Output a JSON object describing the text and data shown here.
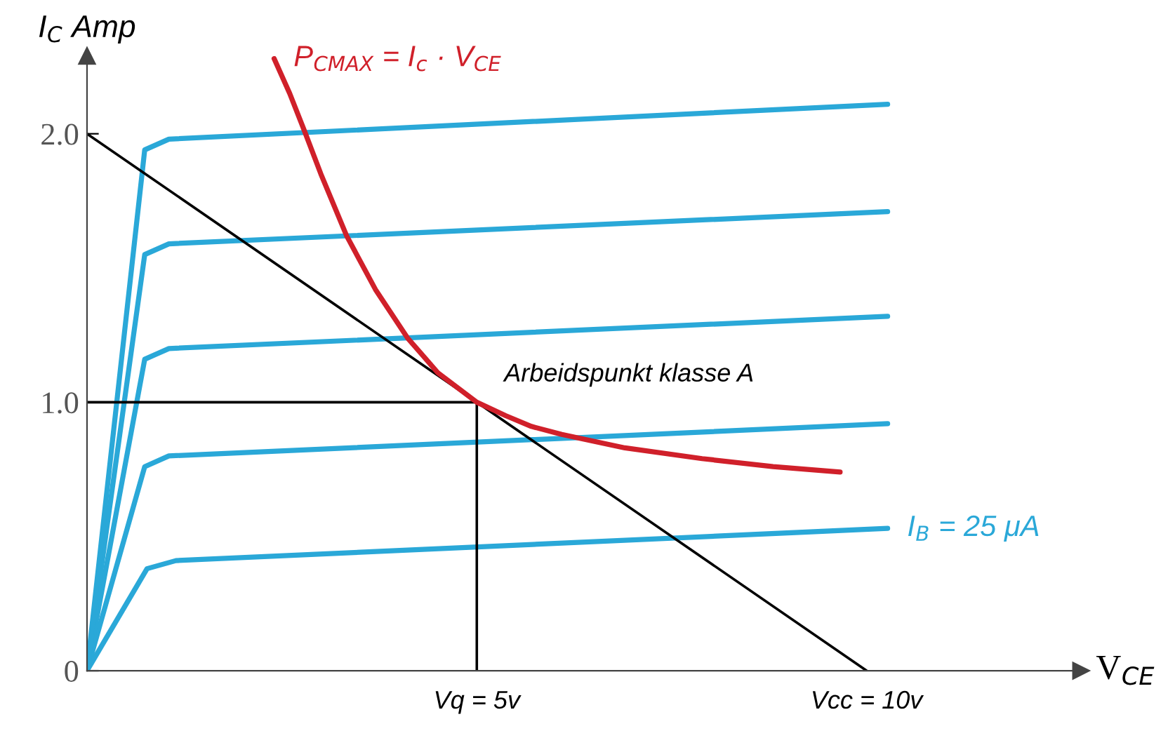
{
  "chart_data": {
    "type": "line",
    "xlabel": "V$_{CE}$",
    "ylabel": "I$_{C}$ Amp",
    "xlim": [
      0,
      12.75
    ],
    "ylim": [
      0,
      2.29
    ],
    "xticks": [
      {
        "value": 5,
        "label": "Vq = 5v"
      },
      {
        "value": 10,
        "label": "Vcc = 10v"
      }
    ],
    "yticks": [
      0,
      {
        "value": 1,
        "label": "1.0"
      },
      {
        "value": 2,
        "label": "2.0"
      }
    ],
    "grid": false,
    "legend": false,
    "marker": "none",
    "line_style": "solid",
    "annotations": [
      {
        "text": "Arbeidspunkt klasse A",
        "x": 5,
        "y": 1
      }
    ],
    "series": [
      {
        "name": "I$_{B}$ = 25 μA",
        "color": "#2aa8d8",
        "x": [
          0,
          0.77,
          1.14,
          10.27
        ],
        "values": [
          0,
          0.38,
          0.41,
          0.53
        ]
      },
      {
        "color": "#2aa8d8",
        "x": [
          0,
          0.74,
          1.05,
          10.27
        ],
        "values": [
          0,
          0.76,
          0.8,
          0.92
        ]
      },
      {
        "color": "#2aa8d8",
        "x": [
          0,
          0.74,
          1.05,
          10.27
        ],
        "values": [
          0,
          1.16,
          1.2,
          1.32
        ]
      },
      {
        "color": "#2aa8d8",
        "x": [
          0,
          0.74,
          1.05,
          10.27
        ],
        "values": [
          0,
          1.55,
          1.59,
          1.71
        ]
      },
      {
        "color": "#2aa8d8",
        "x": [
          0,
          0.74,
          1.05,
          10.27
        ],
        "values": [
          0,
          1.94,
          1.98,
          2.11
        ]
      },
      {
        "color": "#000000",
        "x": [
          0,
          10
        ],
        "values": [
          2,
          0
        ]
      },
      {
        "color": "#000000",
        "x": [
          0,
          5,
          5
        ],
        "values": [
          1,
          1,
          0
        ]
      },
      {
        "name": "P$_{CMAX}$ = I$_{c}$ · V$_{CE}$",
        "color": "#d0202a",
        "x": [
          2.4,
          2.6,
          2.79,
          3.0,
          3.33,
          3.7,
          4.11,
          4.5,
          5,
          5.37,
          5.7,
          6.09,
          6.9,
          7.89,
          8.8,
          9.66
        ],
        "values": [
          2.28,
          2.15,
          2.01,
          1.85,
          1.62,
          1.42,
          1.24,
          1.11,
          1.0,
          0.95,
          0.91,
          0.88,
          0.83,
          0.79,
          0.76,
          0.74
        ]
      }
    ]
  }
}
